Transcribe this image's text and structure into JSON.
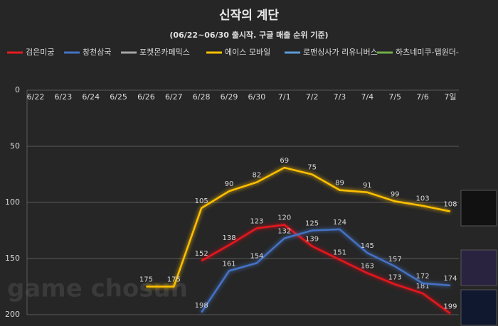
{
  "chart_data": {
    "type": "line",
    "title": "신작의 계단",
    "subtitle": "(06/22~06/30 출시작. 구글 매출 순위 기준)",
    "watermark": "game chosun",
    "categories": [
      "6/22",
      "6/23",
      "6/24",
      "6/25",
      "6/26",
      "6/27",
      "6/28",
      "6/29",
      "6/30",
      "7/1",
      "7/2",
      "7/3",
      "7/4",
      "7/5",
      "7/6",
      "7일"
    ],
    "series": [
      {
        "name": "검은미궁",
        "color": "#e8191f",
        "values": [
          null,
          null,
          null,
          null,
          null,
          null,
          152,
          138,
          123,
          120,
          139,
          151,
          163,
          173,
          181,
          199
        ]
      },
      {
        "name": "창천삼국",
        "color": "#4472c4",
        "values": [
          null,
          null,
          null,
          null,
          null,
          null,
          198,
          161,
          154,
          132,
          125,
          124,
          145,
          157,
          172,
          174
        ]
      },
      {
        "name": "포켓몬카페믹스",
        "color": "#a5a5a5",
        "values": [
          null,
          null,
          null,
          null,
          null,
          null,
          null,
          null,
          null,
          null,
          null,
          null,
          null,
          null,
          null,
          null
        ]
      },
      {
        "name": "에이스 모바일",
        "color": "#ffc000",
        "values": [
          null,
          null,
          null,
          null,
          175,
          175,
          105,
          90,
          82,
          69,
          75,
          89,
          91,
          99,
          103,
          108
        ]
      },
      {
        "name": "로맨싱사가 리유니버스",
        "color": "#5b9bd5",
        "values": [
          null,
          null,
          null,
          null,
          null,
          null,
          null,
          null,
          null,
          null,
          null,
          null,
          null,
          null,
          null,
          null
        ]
      },
      {
        "name": "하츠네미쿠-탭원더-",
        "color": "#70ad47",
        "values": [
          null,
          null,
          null,
          null,
          null,
          null,
          null,
          null,
          null,
          null,
          null,
          null,
          null,
          null,
          null,
          null
        ]
      }
    ],
    "ylim": [
      0,
      200
    ],
    "yticks": [
      0,
      50,
      100,
      150,
      200
    ],
    "reversed": true,
    "grid": true
  }
}
